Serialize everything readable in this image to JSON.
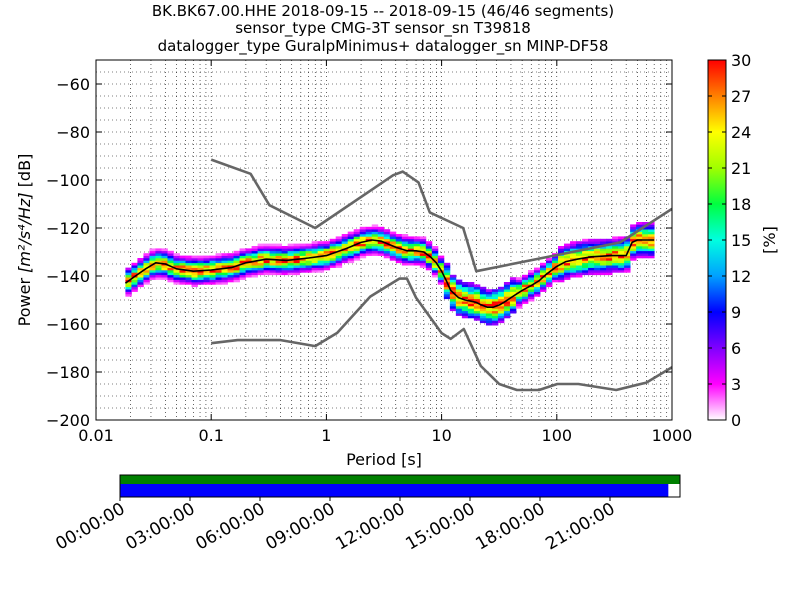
{
  "title_lines": [
    "BK.BK67.00.HHE   2018-09-15 -- 2018-09-15  (46/46 segments)",
    "sensor_type CMG-3T sensor_sn T39818",
    "datalogger_type GuralpMinimus+ datalogger_sn MINP-DF58"
  ],
  "colorbar": {
    "label": "[%]",
    "ticks": [
      "0",
      "3",
      "6",
      "9",
      "12",
      "15",
      "18",
      "21",
      "24",
      "27",
      "30"
    ],
    "range": [
      0,
      30
    ],
    "colormap": [
      "#ffffff",
      "#ff00ff",
      "#8000ff",
      "#0000ff",
      "#00a0ff",
      "#00ffe0",
      "#00ff40",
      "#a0ff00",
      "#ffff00",
      "#ff8000",
      "#ff0000"
    ]
  },
  "timeline": {
    "tick_labels": [
      "00:00:00",
      "03:00:00",
      "06:00:00",
      "09:00:00",
      "12:00:00",
      "15:00:00",
      "18:00:00",
      "21:00:00"
    ],
    "data_coverage_end_hour": 23.5,
    "colors": {
      "coverage": "#008000",
      "data": "#0000ff"
    }
  },
  "chart_data": {
    "type": "heatmap",
    "xlabel": "Period [s]",
    "ylabel_prefix": "Power ",
    "ylabel_units": "[m²/s⁴/Hz]",
    "ylabel_suffix": " [dB]",
    "xscale": "log",
    "xlim": [
      0.01,
      1000
    ],
    "ylim": [
      -200,
      -50
    ],
    "x_tick_labels": [
      "0.01",
      "0.1",
      "1",
      "10",
      "100",
      "1000"
    ],
    "x_tick_values": [
      0.01,
      0.1,
      1,
      10,
      100,
      1000
    ],
    "y_ticks": [
      -200,
      -180,
      -160,
      -140,
      -120,
      -100,
      -80,
      -60
    ],
    "y_tick_labels": [
      "−200",
      "−180",
      "−160",
      "−140",
      "−120",
      "−100",
      "−80",
      "−60"
    ],
    "grid": true,
    "series": [
      {
        "role": "nhnm",
        "color": "#666666",
        "x": [
          0.1,
          0.22,
          0.32,
          0.8,
          3.8,
          4.6,
          6.3,
          7.9,
          15.4,
          20,
          354.8,
          1000
        ],
        "y": [
          -91.5,
          -97.4,
          -110.5,
          -120.0,
          -98.0,
          -96.5,
          -101.0,
          -113.5,
          -120.0,
          -138.0,
          -126.0,
          -112.0
        ]
      },
      {
        "role": "nlnm",
        "color": "#666666",
        "x": [
          0.1,
          0.17,
          0.4,
          0.8,
          1.24,
          2.4,
          4.3,
          5.0,
          6.0,
          10.0,
          12.0,
          15.6,
          21.9,
          31.6,
          45.0,
          70.0,
          101.0,
          154.0,
          328.0,
          600.0,
          1000.0
        ],
        "y": [
          -168.0,
          -166.7,
          -166.7,
          -169.2,
          -163.7,
          -148.6,
          -141.1,
          -141.1,
          -149.0,
          -163.8,
          -166.2,
          -162.1,
          -177.5,
          -185.0,
          -187.5,
          -187.5,
          -185.0,
          -185.0,
          -187.5,
          -184.4,
          -178.0
        ]
      },
      {
        "role": "mean",
        "color": "#000000",
        "x": [
          0.018,
          0.022,
          0.027,
          0.033,
          0.04,
          0.05,
          0.07,
          0.1,
          0.15,
          0.2,
          0.3,
          0.45,
          0.7,
          1.0,
          1.5,
          2.0,
          2.5,
          3.0,
          4.0,
          5.0,
          6.0,
          7.0,
          8.0,
          9.0,
          10,
          11,
          12,
          14,
          16,
          18,
          20,
          22,
          25,
          28,
          32,
          36,
          40,
          50,
          60,
          70,
          80,
          100,
          120,
          150,
          200,
          300,
          400,
          450,
          500,
          700
        ],
        "y": [
          -143,
          -140,
          -137,
          -134.5,
          -135,
          -137,
          -138,
          -137.5,
          -136.5,
          -134.5,
          -133,
          -133.5,
          -132.5,
          -131.5,
          -128.5,
          -126,
          -125,
          -125.5,
          -128,
          -129.5,
          -129.5,
          -130,
          -132,
          -134.5,
          -138,
          -142,
          -146,
          -149,
          -150,
          -150.5,
          -151,
          -152,
          -153,
          -153,
          -152,
          -150.5,
          -149,
          -146,
          -144,
          -142,
          -139.5,
          -136,
          -134,
          -133,
          -132,
          -131.5,
          -131.5,
          -126,
          -125,
          -125
        ]
      }
    ]
  }
}
